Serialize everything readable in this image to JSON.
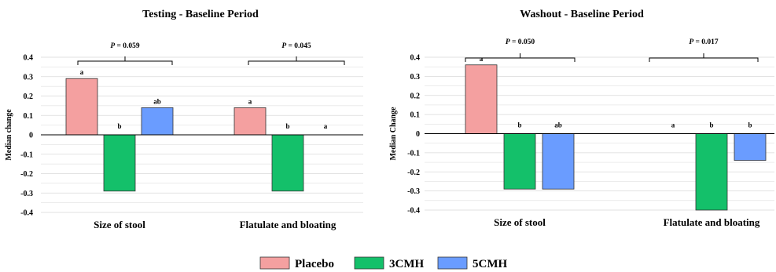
{
  "chart_data": [
    {
      "type": "bar",
      "title": "Testing - Baseline Period",
      "ylabel": "Median change",
      "xlabel": "",
      "ylim": [
        -0.4,
        0.4
      ],
      "yticks": [
        "0.4",
        "0.3",
        "0.2",
        "0.1",
        "0",
        "-0.1",
        "-0.2",
        "-0.3",
        "-0.4"
      ],
      "grid": true,
      "categories": [
        "Size of stool",
        "Flatulate and bloating"
      ],
      "series": [
        {
          "name": "Placebo",
          "values": [
            0.29,
            0.14
          ],
          "letters": [
            "a",
            "a"
          ]
        },
        {
          "name": "3CMH",
          "values": [
            -0.29,
            -0.29
          ],
          "letters": [
            "b",
            "b"
          ]
        },
        {
          "name": "5CMH",
          "values": [
            0.14,
            0
          ],
          "letters": [
            "ab",
            "a"
          ]
        }
      ],
      "pvalues": [
        {
          "label": "P",
          "text": " = 0.059"
        },
        {
          "label": "P",
          "text": " = 0.045"
        }
      ]
    },
    {
      "type": "bar",
      "title": "Washout - Baseline Period",
      "ylabel": "Median Change",
      "xlabel": "",
      "ylim": [
        -0.4,
        0.4
      ],
      "yticks": [
        "0.4",
        "0.3",
        "0.2",
        "0.1",
        "0",
        "-0.1",
        "-0.2",
        "-0.3",
        "-0.4"
      ],
      "grid": true,
      "categories": [
        "Size of stool",
        "Flatulate and bloating"
      ],
      "series": [
        {
          "name": "Placebo",
          "values": [
            0.36,
            0
          ],
          "letters": [
            "a",
            "a"
          ]
        },
        {
          "name": "3CMH",
          "values": [
            -0.29,
            -0.4
          ],
          "letters": [
            "b",
            "b"
          ]
        },
        {
          "name": "5CMH",
          "values": [
            -0.29,
            -0.14
          ],
          "letters": [
            "ab",
            "b"
          ]
        }
      ],
      "pvalues": [
        {
          "label": "P",
          "text": " = 0.050"
        },
        {
          "label": "P",
          "text": " = 0.017"
        }
      ]
    }
  ],
  "legend": {
    "placement": "bottom-center",
    "items": [
      {
        "name": "Placebo",
        "color": "#f4a0a0"
      },
      {
        "name": "3CMH",
        "color": "#14c06a"
      },
      {
        "name": "5CMH",
        "color": "#6a9cff"
      }
    ]
  },
  "colors": {
    "placebo": "#f4a0a0",
    "cmh3": "#14c06a",
    "cmh5": "#6a9cff",
    "grid": "#d9d9d9"
  }
}
